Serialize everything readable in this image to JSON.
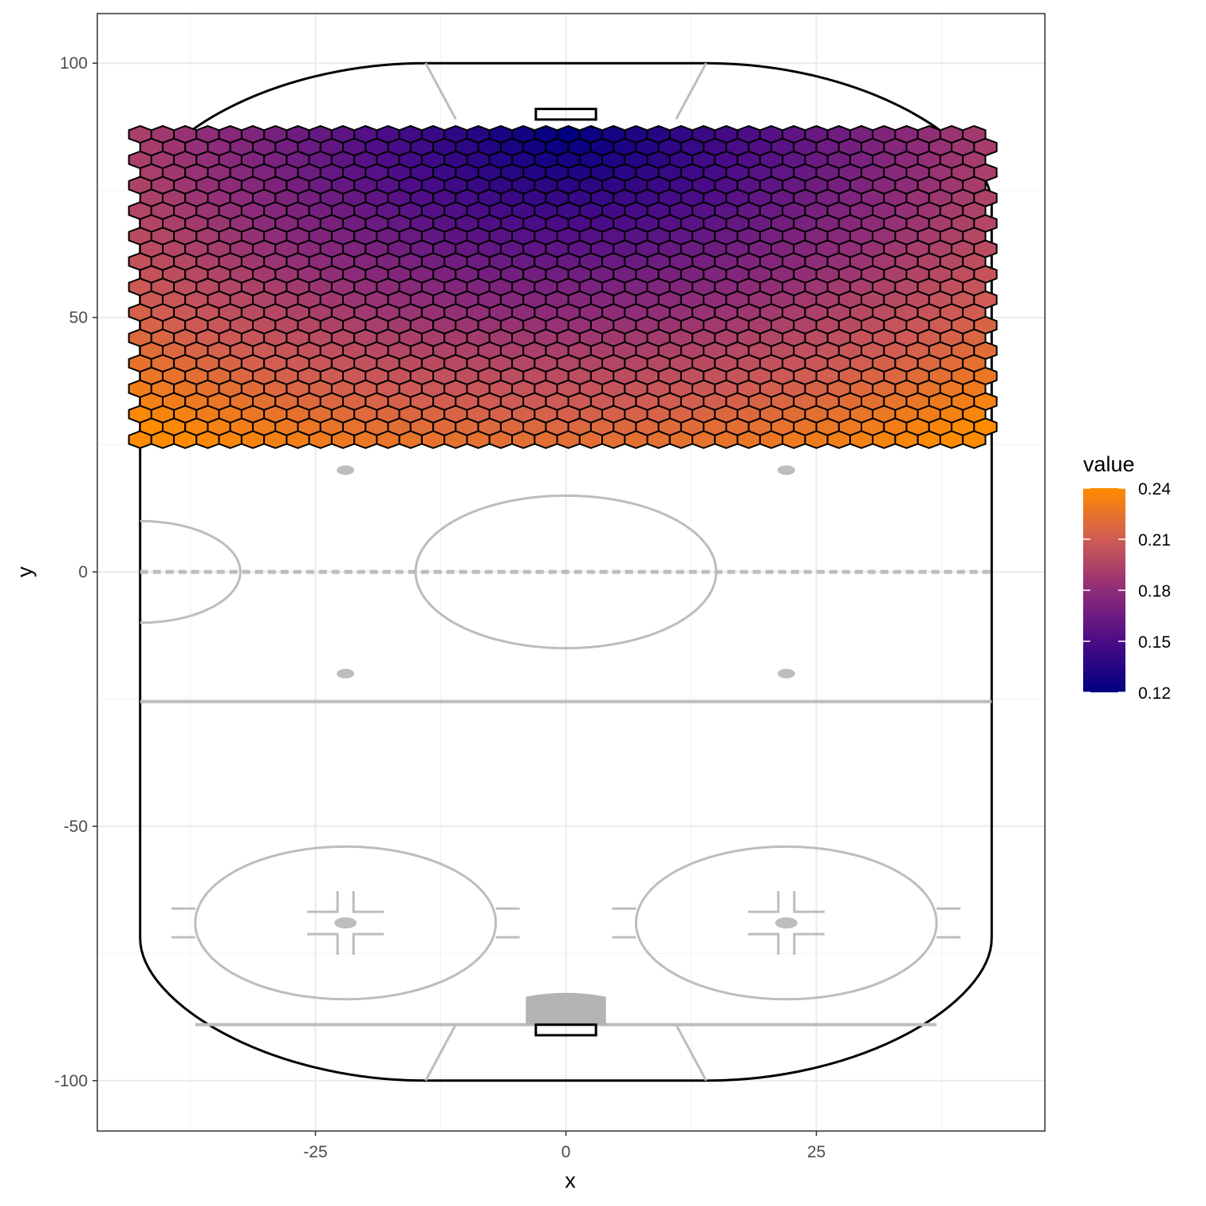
{
  "chart_data": {
    "type": "heatmap",
    "geometry": "hexbin",
    "background": "hockey rink (half-rink view, attacking zone at top)",
    "xlabel": "x",
    "ylabel": "y",
    "xlim": [
      -46.5,
      47
    ],
    "ylim": [
      -110,
      110
    ],
    "x_ticks": [
      -25,
      0,
      25
    ],
    "x_tick_labels": [
      "-25",
      "0",
      "25"
    ],
    "y_ticks": [
      -100,
      -50,
      0,
      50,
      100
    ],
    "y_tick_labels": [
      "-100",
      "-50",
      "0",
      "50",
      "100"
    ],
    "grid": true,
    "hexbin_extent": {
      "x": [
        -42.5,
        42.5
      ],
      "y": [
        25,
        86
      ]
    },
    "value_field": {
      "description": "value increases with distance from the goal crease at (0, 86); minimum near the net, maximum in the lower corners",
      "min": 0.12,
      "max": 0.24,
      "center": [
        0,
        86
      ],
      "approx": "value ≈ 0.12 + 0.12 * clamp(distance / 71, 0, 1)"
    },
    "sample_values": [
      {
        "x": 0,
        "y": 86,
        "value": 0.12
      },
      {
        "x": 0,
        "y": 70,
        "value": 0.14
      },
      {
        "x": 0,
        "y": 50,
        "value": 0.17
      },
      {
        "x": 0,
        "y": 25,
        "value": 0.2
      },
      {
        "x": -40,
        "y": 86,
        "value": 0.19
      },
      {
        "x": 40,
        "y": 86,
        "value": 0.19
      },
      {
        "x": -40,
        "y": 50,
        "value": 0.21
      },
      {
        "x": -40,
        "y": 28,
        "value": 0.24
      },
      {
        "x": 42,
        "y": 25,
        "value": 0.24
      }
    ],
    "legend": {
      "title": "value",
      "position": "right",
      "breaks": [
        0.12,
        0.15,
        0.18,
        0.21,
        0.24
      ],
      "labels": [
        "0.12",
        "0.15",
        "0.18",
        "0.21",
        "0.24"
      ],
      "colors": [
        "#000080",
        "#4b0c87",
        "#8f2c78",
        "#d05c54",
        "#ff8c00"
      ]
    }
  }
}
